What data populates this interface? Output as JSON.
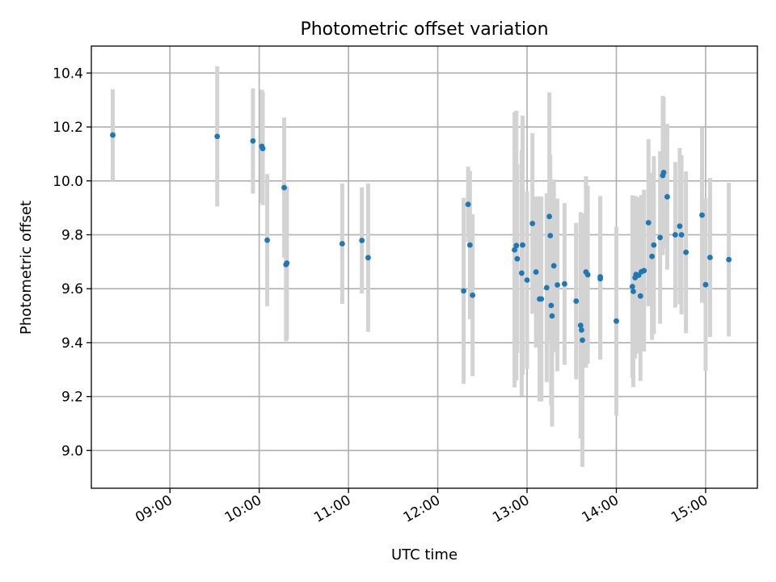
{
  "chart_data": {
    "type": "scatter",
    "title": "Photometric offset variation",
    "xlabel": "UTC time",
    "ylabel": "Photometric offset",
    "x_unit": "hours UTC",
    "xlim": [
      8.12,
      15.58
    ],
    "ylim": [
      8.86,
      10.5
    ],
    "grid": true,
    "x_ticks": [
      9,
      10,
      11,
      12,
      13,
      14,
      15
    ],
    "x_tick_labels": [
      "09:00",
      "10:00",
      "11:00",
      "12:00",
      "13:00",
      "14:00",
      "15:00"
    ],
    "y_ticks": [
      9.0,
      9.2,
      9.4,
      9.6,
      9.8,
      10.0,
      10.2,
      10.4
    ],
    "y_tick_labels": [
      "9.0",
      "9.2",
      "9.4",
      "9.6",
      "9.8",
      "10.0",
      "10.2",
      "10.4"
    ],
    "marker_color": "#1f77b4",
    "errorbar_color": "#d3d3d3",
    "points": [
      [
        8.36,
        10.17,
        0.17
      ],
      [
        9.53,
        10.165,
        0.26
      ],
      [
        9.93,
        10.148,
        0.195
      ],
      [
        10.03,
        10.128,
        0.21
      ],
      [
        10.04,
        10.12,
        0.21
      ],
      [
        10.09,
        9.78,
        0.245
      ],
      [
        10.28,
        9.975,
        0.26
      ],
      [
        10.3,
        9.69,
        0.285
      ],
      [
        10.31,
        9.695,
        0.285
      ],
      [
        10.93,
        9.767,
        0.223
      ],
      [
        11.15,
        9.779,
        0.197
      ],
      [
        11.22,
        9.715,
        0.275
      ],
      [
        12.29,
        9.592,
        0.345
      ],
      [
        12.34,
        9.913,
        0.14
      ],
      [
        12.36,
        9.762,
        0.275
      ],
      [
        12.39,
        9.576,
        0.3
      ],
      [
        12.86,
        9.744,
        0.51
      ],
      [
        12.88,
        9.76,
        0.5
      ],
      [
        12.89,
        9.711,
        0.35
      ],
      [
        12.94,
        9.658,
        0.455
      ],
      [
        12.95,
        9.762,
        0.48
      ],
      [
        13.0,
        9.632,
        0.33
      ],
      [
        13.06,
        9.842,
        0.335
      ],
      [
        13.1,
        9.662,
        0.28
      ],
      [
        13.14,
        9.562,
        0.38
      ],
      [
        13.16,
        9.562,
        0.38
      ],
      [
        13.22,
        9.604,
        0.35
      ],
      [
        13.25,
        9.868,
        0.46
      ],
      [
        13.26,
        9.797,
        0.3
      ],
      [
        13.27,
        9.538,
        0.37
      ],
      [
        13.28,
        9.499,
        0.41
      ],
      [
        13.3,
        9.685,
        0.32
      ],
      [
        13.34,
        9.614,
        0.32
      ],
      [
        13.42,
        9.618,
        0.3
      ],
      [
        13.55,
        9.554,
        0.29
      ],
      [
        13.6,
        9.464,
        0.42
      ],
      [
        13.61,
        9.447,
        0.4
      ],
      [
        13.62,
        9.409,
        0.47
      ],
      [
        13.66,
        9.662,
        0.355
      ],
      [
        13.68,
        9.652,
        0.33
      ],
      [
        13.82,
        9.637,
        0.3
      ],
      [
        13.82,
        9.644,
        0.3
      ],
      [
        14.0,
        9.48,
        0.35
      ],
      [
        14.18,
        9.608,
        0.338
      ],
      [
        14.19,
        9.59,
        0.355
      ],
      [
        14.21,
        9.641,
        0.3
      ],
      [
        14.22,
        9.653,
        0.29
      ],
      [
        14.25,
        9.65,
        0.29
      ],
      [
        14.27,
        9.573,
        0.315
      ],
      [
        14.28,
        9.663,
        0.285
      ],
      [
        14.31,
        9.667,
        0.3
      ],
      [
        14.36,
        9.845,
        0.31
      ],
      [
        14.4,
        9.72,
        0.31
      ],
      [
        14.42,
        9.762,
        0.33
      ],
      [
        14.49,
        9.79,
        0.32
      ],
      [
        14.52,
        10.02,
        0.295
      ],
      [
        14.53,
        10.031,
        0.28
      ],
      [
        14.57,
        9.941,
        0.27
      ],
      [
        14.66,
        9.8,
        0.27
      ],
      [
        14.71,
        9.832,
        0.29
      ],
      [
        14.73,
        9.8,
        0.295
      ],
      [
        14.78,
        9.735,
        0.3
      ],
      [
        14.96,
        9.873,
        0.325
      ],
      [
        15.0,
        9.615,
        0.32
      ],
      [
        15.05,
        9.716,
        0.295
      ],
      [
        15.26,
        9.708,
        0.285
      ]
    ]
  }
}
